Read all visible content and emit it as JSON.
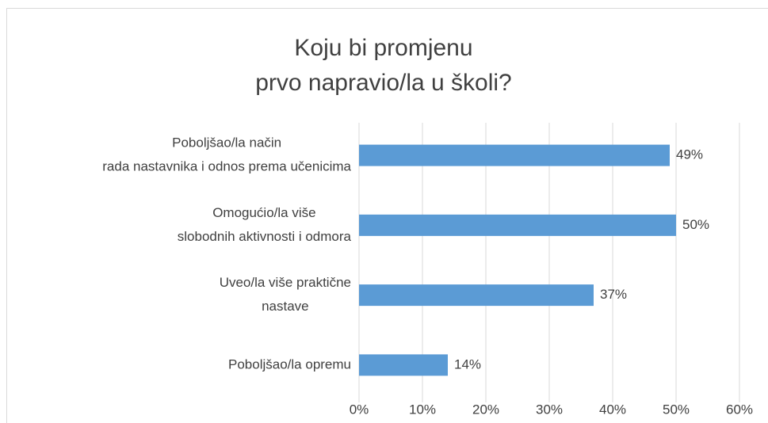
{
  "chart_data": {
    "type": "bar",
    "orientation": "horizontal",
    "title": [
      "Koju bi promjenu",
      "prvo napravio/la u školi?"
    ],
    "categories": [
      [
        "Poboljšao/la način",
        "rada nastavnika i odnos prema učenicima"
      ],
      [
        "Omogućio/la više",
        "slobodnih aktivnosti i odmora"
      ],
      [
        "Uveo/la više praktične",
        "nastave"
      ],
      [
        "Poboljšao/la opremu"
      ]
    ],
    "values": [
      49,
      50,
      37,
      14
    ],
    "value_labels": [
      "49%",
      "50%",
      "37%",
      "14%"
    ],
    "color": "#5b9bd5",
    "xlim": [
      0,
      60
    ],
    "xticks": [
      {
        "value": 0,
        "label": "0%"
      },
      {
        "value": 10,
        "label": "10%"
      },
      {
        "value": 20,
        "label": "20%"
      },
      {
        "value": 30,
        "label": "30%"
      },
      {
        "value": 40,
        "label": "40%"
      },
      {
        "value": 50,
        "label": "50%"
      },
      {
        "value": 60,
        "label": "60%"
      }
    ],
    "grid": true
  }
}
